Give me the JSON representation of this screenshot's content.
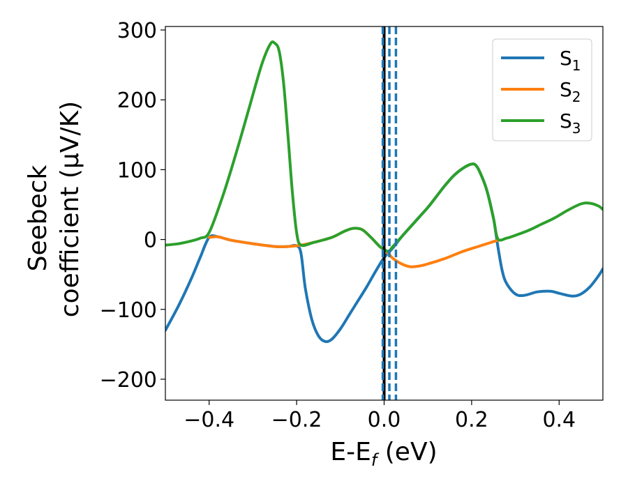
{
  "chart_data": {
    "type": "line",
    "title": "",
    "xlabel": {
      "main": "E-E",
      "sub": "f",
      "unit": " (eV)"
    },
    "ylabel": {
      "line1": "Seebeck",
      "line2": "coefficient  (μV/K)"
    },
    "xlim": [
      -0.5,
      0.5
    ],
    "ylim": [
      -230,
      305
    ],
    "xticks": [
      -0.4,
      -0.2,
      0.0,
      0.2,
      0.4
    ],
    "xtick_labels": [
      "−0.4",
      "−0.2",
      "0.0",
      "0.2",
      "0.4"
    ],
    "yticks": [
      -200,
      -100,
      0,
      100,
      200,
      300
    ],
    "ytick_labels": [
      "−200",
      "−100",
      "0",
      "100",
      "200",
      "300"
    ],
    "grid": false,
    "legend_position": "top-right",
    "series": [
      {
        "name": "S",
        "subscript": "1",
        "color": "#1f77b4",
        "points": [
          [
            -0.5,
            -130
          ],
          [
            -0.47,
            -95
          ],
          [
            -0.44,
            -55
          ],
          [
            -0.42,
            -25
          ],
          [
            -0.4,
            3
          ],
          [
            -0.38,
            4
          ],
          [
            -0.35,
            -1
          ],
          [
            -0.3,
            -6
          ],
          [
            -0.25,
            -10
          ],
          [
            -0.22,
            -10
          ],
          [
            -0.2,
            -9
          ],
          [
            -0.19,
            -20
          ],
          [
            -0.18,
            -70
          ],
          [
            -0.165,
            -115
          ],
          [
            -0.15,
            -138
          ],
          [
            -0.135,
            -146
          ],
          [
            -0.12,
            -143
          ],
          [
            -0.1,
            -128
          ],
          [
            -0.08,
            -108
          ],
          [
            -0.06,
            -88
          ],
          [
            -0.04,
            -68
          ],
          [
            -0.02,
            -46
          ],
          [
            0.0,
            -26
          ],
          [
            0.02,
            -12
          ],
          [
            0.04,
            4
          ],
          [
            0.06,
            18
          ],
          [
            0.08,
            32
          ],
          [
            0.1,
            46
          ],
          [
            0.12,
            62
          ],
          [
            0.14,
            78
          ],
          [
            0.16,
            92
          ],
          [
            0.18,
            102
          ],
          [
            0.2,
            108
          ],
          [
            0.21,
            106
          ],
          [
            0.22,
            95
          ],
          [
            0.235,
            70
          ],
          [
            0.25,
            30
          ],
          [
            0.26,
            -10
          ],
          [
            0.27,
            -45
          ],
          [
            0.28,
            -63
          ],
          [
            0.3,
            -78
          ],
          [
            0.32,
            -80
          ],
          [
            0.35,
            -75
          ],
          [
            0.38,
            -74
          ],
          [
            0.4,
            -77
          ],
          [
            0.43,
            -81
          ],
          [
            0.45,
            -78
          ],
          [
            0.47,
            -68
          ],
          [
            0.49,
            -52
          ],
          [
            0.5,
            -42
          ]
        ]
      },
      {
        "name": "S",
        "subscript": "2",
        "color": "#ff7f0e",
        "points": [
          [
            -0.4,
            3
          ],
          [
            -0.38,
            4
          ],
          [
            -0.35,
            -1
          ],
          [
            -0.3,
            -6
          ],
          [
            -0.25,
            -10
          ],
          [
            -0.22,
            -10
          ],
          [
            -0.19,
            -8
          ],
          [
            -0.16,
            -4
          ],
          [
            -0.12,
            3
          ],
          [
            -0.09,
            12
          ],
          [
            -0.07,
            16
          ],
          [
            -0.05,
            14
          ],
          [
            -0.03,
            3
          ],
          [
            -0.01,
            -10
          ],
          [
            0.0,
            -14
          ],
          [
            0.01,
            -20
          ],
          [
            0.02,
            -27
          ],
          [
            0.04,
            -35
          ],
          [
            0.06,
            -39
          ],
          [
            0.08,
            -38
          ],
          [
            0.1,
            -35
          ],
          [
            0.14,
            -27
          ],
          [
            0.18,
            -17
          ],
          [
            0.22,
            -9
          ],
          [
            0.24,
            -5
          ],
          [
            0.26,
            -1
          ]
        ]
      },
      {
        "name": "S",
        "subscript": "3",
        "color": "#2ca02c",
        "points": [
          [
            -0.5,
            -8
          ],
          [
            -0.47,
            -6
          ],
          [
            -0.44,
            -2
          ],
          [
            -0.42,
            2
          ],
          [
            -0.4,
            10
          ],
          [
            -0.37,
            60
          ],
          [
            -0.34,
            120
          ],
          [
            -0.31,
            185
          ],
          [
            -0.28,
            250
          ],
          [
            -0.26,
            280
          ],
          [
            -0.25,
            281
          ],
          [
            -0.24,
            270
          ],
          [
            -0.23,
            225
          ],
          [
            -0.22,
            150
          ],
          [
            -0.21,
            70
          ],
          [
            -0.2,
            10
          ],
          [
            -0.19,
            -8
          ],
          [
            -0.16,
            -4
          ],
          [
            -0.12,
            3
          ],
          [
            -0.09,
            12
          ],
          [
            -0.07,
            16
          ],
          [
            -0.05,
            14
          ],
          [
            -0.03,
            3
          ],
          [
            -0.01,
            -10
          ],
          [
            0.0,
            -14
          ],
          [
            0.01,
            -17
          ],
          [
            0.02,
            -10
          ],
          [
            0.04,
            4
          ],
          [
            0.06,
            18
          ],
          [
            0.08,
            32
          ],
          [
            0.1,
            46
          ],
          [
            0.12,
            62
          ],
          [
            0.14,
            78
          ],
          [
            0.16,
            92
          ],
          [
            0.18,
            102
          ],
          [
            0.2,
            108
          ],
          [
            0.21,
            106
          ],
          [
            0.22,
            95
          ],
          [
            0.235,
            70
          ],
          [
            0.25,
            30
          ],
          [
            0.26,
            1
          ],
          [
            0.28,
            2
          ],
          [
            0.3,
            6
          ],
          [
            0.33,
            13
          ],
          [
            0.36,
            22
          ],
          [
            0.39,
            31
          ],
          [
            0.42,
            42
          ],
          [
            0.45,
            51
          ],
          [
            0.47,
            52
          ],
          [
            0.49,
            48
          ],
          [
            0.5,
            43
          ]
        ]
      }
    ],
    "vlines": [
      {
        "x": 0.0,
        "color": "#000000",
        "style": "solid"
      },
      {
        "x": -0.003,
        "color": "#1f77b4",
        "style": "dashed"
      },
      {
        "x": 0.012,
        "color": "#1f77b4",
        "style": "dashed"
      },
      {
        "x": 0.027,
        "color": "#1f77b4",
        "style": "dashed"
      }
    ]
  }
}
